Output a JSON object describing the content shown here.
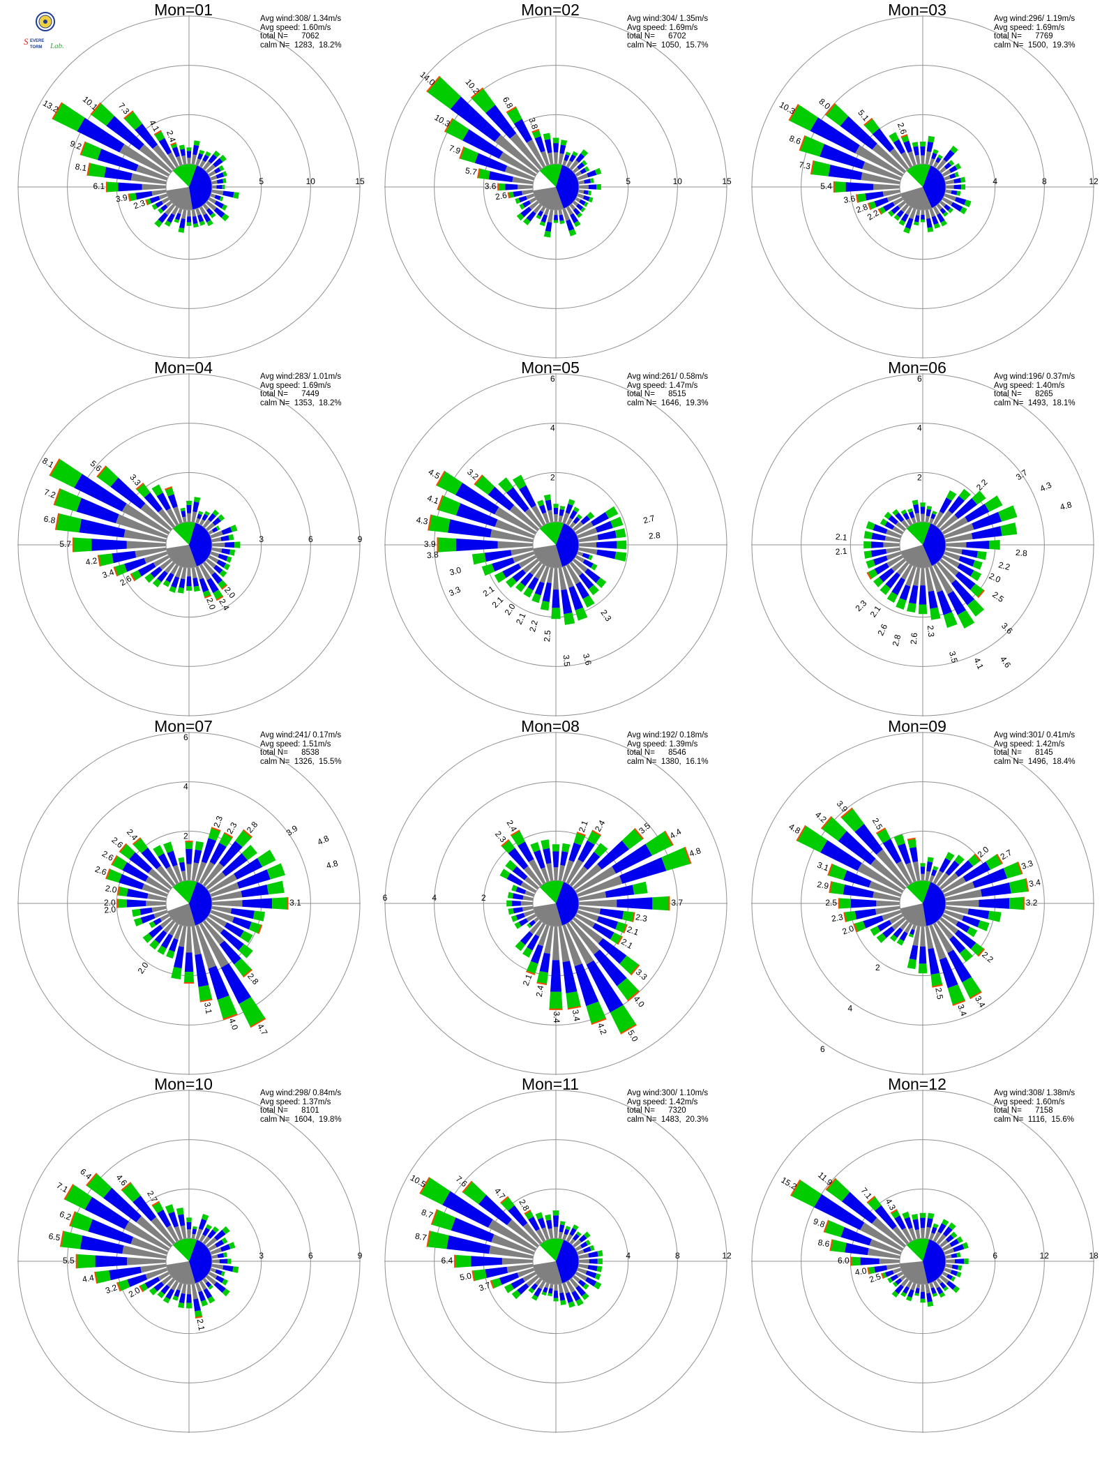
{
  "logo": {
    "text_line1": "Severe",
    "text_line2": "Storm",
    "text_line3": "Lab.",
    "colors": [
      "#1d3b8f",
      "#e02020",
      "#3aa53a"
    ]
  },
  "stat_labels": {
    "avg_wind": "Avg wind:",
    "avg_speed": "Avg speed:",
    "total": "total N=",
    "calm": "calm N="
  },
  "colors": {
    "low": "#808080",
    "mid": "#0000ee",
    "high": "#00cc00",
    "top": "#ff4500",
    "calm_fill": "#ffffff"
  },
  "chart_data": [
    {
      "type": "wind-rose",
      "title": "Mon=01",
      "avg_wind": "308/ 1.34m/s",
      "avg_speed": "1.60m/s",
      "total_n": "7062",
      "calm_n": "1283,",
      "calm_pct": "18.2%",
      "rings": [
        5,
        10,
        15
      ],
      "ring_labels": [
        "5",
        "10",
        "15"
      ],
      "calm_pie": [
        25,
        42,
        18,
        15
      ],
      "labels": [
        {
          "dir": 300,
          "v": "13.2"
        },
        {
          "dir": 310,
          "v": "10.1"
        },
        {
          "dir": 320,
          "v": "7.3"
        },
        {
          "dir": 330,
          "v": "4.1"
        },
        {
          "dir": 340,
          "v": "2.4"
        },
        {
          "dir": 290,
          "v": "9.2"
        },
        {
          "dir": 280,
          "v": "8.1"
        },
        {
          "dir": 270,
          "v": "6.1"
        },
        {
          "dir": 260,
          "v": "3.9"
        },
        {
          "dir": 250,
          "v": "2.3"
        }
      ]
    },
    {
      "type": "wind-rose",
      "title": "Mon=02",
      "avg_wind": "304/ 1.35m/s",
      "avg_speed": "1.69m/s",
      "total_n": "6702",
      "calm_n": "1050,",
      "calm_pct": "15.7%",
      "rings": [
        5,
        10,
        15
      ],
      "ring_labels": [
        "5",
        "10",
        "15"
      ],
      "calm_pie": [
        28,
        40,
        17,
        15
      ],
      "labels": [
        {
          "dir": 310,
          "v": "14.0"
        },
        {
          "dir": 320,
          "v": "10.2"
        },
        {
          "dir": 330,
          "v": "6.8"
        },
        {
          "dir": 340,
          "v": "3.8"
        },
        {
          "dir": 300,
          "v": "10.3"
        },
        {
          "dir": 290,
          "v": "7.9"
        },
        {
          "dir": 280,
          "v": "5.7"
        },
        {
          "dir": 270,
          "v": "3.6"
        },
        {
          "dir": 260,
          "v": "2.6"
        }
      ]
    },
    {
      "type": "wind-rose",
      "title": "Mon=03",
      "avg_wind": "296/ 1.19m/s",
      "avg_speed": "1.69m/s",
      "total_n": "7769",
      "calm_n": "1500,",
      "calm_pct": "19.3%",
      "rings": [
        4,
        8,
        12
      ],
      "ring_labels": [
        "4",
        "8",
        "12"
      ],
      "calm_pie": [
        27,
        38,
        18,
        17
      ],
      "labels": [
        {
          "dir": 300,
          "v": "10.3"
        },
        {
          "dir": 310,
          "v": "8.0"
        },
        {
          "dir": 320,
          "v": "5.1"
        },
        {
          "dir": 340,
          "v": "2.6"
        },
        {
          "dir": 290,
          "v": "8.6"
        },
        {
          "dir": 280,
          "v": "7.3"
        },
        {
          "dir": 270,
          "v": "5.4"
        },
        {
          "dir": 260,
          "v": "3.6"
        },
        {
          "dir": 250,
          "v": "2.8"
        },
        {
          "dir": 240,
          "v": "2.2"
        }
      ]
    },
    {
      "type": "wind-rose",
      "title": "Mon=04",
      "avg_wind": "283/ 1.01m/s",
      "avg_speed": "1.69m/s",
      "total_n": "7449",
      "calm_n": "1353,",
      "calm_pct": "18.2%",
      "rings": [
        3,
        6,
        9
      ],
      "ring_labels": [
        "3",
        "6",
        "9"
      ],
      "calm_pie": [
        28,
        40,
        17,
        15
      ],
      "labels": [
        {
          "dir": 300,
          "v": "8.1"
        },
        {
          "dir": 310,
          "v": "5.6"
        },
        {
          "dir": 320,
          "v": "3.3"
        },
        {
          "dir": 290,
          "v": "7.2"
        },
        {
          "dir": 280,
          "v": "6.8"
        },
        {
          "dir": 270,
          "v": "5.7"
        },
        {
          "dir": 260,
          "v": "4.2"
        },
        {
          "dir": 250,
          "v": "3.4"
        },
        {
          "dir": 240,
          "v": "2.6"
        },
        {
          "dir": 160,
          "v": "2.0"
        },
        {
          "dir": 150,
          "v": "2.4"
        },
        {
          "dir": 140,
          "v": "2.0"
        }
      ]
    },
    {
      "type": "wind-rose",
      "title": "Mon=05",
      "avg_wind": "261/ 0.58m/s",
      "avg_speed": "1.47m/s",
      "total_n": "8515",
      "calm_n": "1646,",
      "calm_pct": "19.3%",
      "rings": [
        2,
        4,
        6
      ],
      "ring_labels": [
        "2",
        "4",
        "6"
      ],
      "ring_label_dir": "up",
      "calm_pie": [
        27,
        40,
        18,
        15
      ],
      "labels": [
        {
          "dir": 300,
          "v": "4.5"
        },
        {
          "dir": 310,
          "v": "3.2"
        },
        {
          "dir": 290,
          "v": "4.1"
        },
        {
          "dir": 280,
          "v": "4.3"
        },
        {
          "dir": 270,
          "v": "3.9"
        },
        {
          "dir": 265,
          "v": "3.8"
        },
        {
          "dir": 255,
          "v": "3.0"
        },
        {
          "dir": 245,
          "v": "3.3"
        },
        {
          "dir": 235,
          "v": "2.1"
        },
        {
          "dir": 225,
          "v": "2.1"
        },
        {
          "dir": 215,
          "v": "2.0"
        },
        {
          "dir": 205,
          "v": "2.1"
        },
        {
          "dir": 195,
          "v": "2.2"
        },
        {
          "dir": 185,
          "v": "2.5"
        },
        {
          "dir": 175,
          "v": "3.5"
        },
        {
          "dir": 165,
          "v": "3.6"
        },
        {
          "dir": 145,
          "v": "2.3"
        },
        {
          "dir": 75,
          "v": "2.7"
        },
        {
          "dir": 85,
          "v": "2.8"
        }
      ]
    },
    {
      "type": "wind-rose",
      "title": "Mon=06",
      "avg_wind": "196/ 0.37m/s",
      "avg_speed": "1.40m/s",
      "total_n": "8265",
      "calm_n": "1493,",
      "calm_pct": "18.1%",
      "rings": [
        2,
        4,
        6
      ],
      "ring_labels": [
        "2",
        "4",
        "6"
      ],
      "ring_label_dir": "up",
      "calm_pie": [
        27,
        38,
        18,
        17
      ],
      "labels": [
        {
          "dir": 45,
          "v": "2.2"
        },
        {
          "dir": 55,
          "v": "3.7"
        },
        {
          "dir": 65,
          "v": "4.3"
        },
        {
          "dir": 75,
          "v": "4.8"
        },
        {
          "dir": 95,
          "v": "2.8"
        },
        {
          "dir": 105,
          "v": "2.2"
        },
        {
          "dir": 115,
          "v": "2.0"
        },
        {
          "dir": 125,
          "v": "2.5"
        },
        {
          "dir": 135,
          "v": "3.6"
        },
        {
          "dir": 145,
          "v": "4.6"
        },
        {
          "dir": 155,
          "v": "4.1"
        },
        {
          "dir": 165,
          "v": "3.5"
        },
        {
          "dir": 175,
          "v": "2.3"
        },
        {
          "dir": 185,
          "v": "2.6"
        },
        {
          "dir": 195,
          "v": "2.8"
        },
        {
          "dir": 205,
          "v": "2.6"
        },
        {
          "dir": 215,
          "v": "2.1"
        },
        {
          "dir": 225,
          "v": "2.3"
        },
        {
          "dir": 265,
          "v": "2.1"
        },
        {
          "dir": 275,
          "v": "2.1"
        }
      ]
    },
    {
      "type": "wind-rose",
      "title": "Mon=07",
      "avg_wind": "241/ 0.17m/s",
      "avg_speed": "1.51m/s",
      "total_n": "8538",
      "calm_n": "1326,",
      "calm_pct": "15.5%",
      "rings": [
        2,
        4,
        6
      ],
      "ring_labels": [
        "2",
        "4",
        "6"
      ],
      "ring_label_dir": "up",
      "calm_pie": [
        24,
        40,
        18,
        18
      ],
      "labels": [
        {
          "dir": 300,
          "v": "2.6"
        },
        {
          "dir": 310,
          "v": "2.6"
        },
        {
          "dir": 320,
          "v": "2.4"
        },
        {
          "dir": 290,
          "v": "2.6"
        },
        {
          "dir": 280,
          "v": "2.0"
        },
        {
          "dir": 265,
          "v": "2.0"
        },
        {
          "dir": 270,
          "v": "2.0"
        },
        {
          "dir": 20,
          "v": "2.3"
        },
        {
          "dir": 30,
          "v": "2.3"
        },
        {
          "dir": 40,
          "v": "2.8"
        },
        {
          "dir": 55,
          "v": "3.9"
        },
        {
          "dir": 65,
          "v": "4.8"
        },
        {
          "dir": 75,
          "v": "4.8"
        },
        {
          "dir": 90,
          "v": "3.1"
        },
        {
          "dir": 140,
          "v": "2.8"
        },
        {
          "dir": 150,
          "v": "4.7"
        },
        {
          "dir": 160,
          "v": "4.0"
        },
        {
          "dir": 170,
          "v": "3.1"
        },
        {
          "dir": 215,
          "v": "2.0"
        }
      ]
    },
    {
      "type": "wind-rose",
      "title": "Mon=08",
      "avg_wind": "192/ 0.18m/s",
      "avg_speed": "1.39m/s",
      "total_n": "8546",
      "calm_n": "1380,",
      "calm_pct": "16.1%",
      "rings": [
        2,
        4,
        6
      ],
      "ring_labels": [
        "2",
        "4",
        "6"
      ],
      "ring_label_dir": "left",
      "calm_pie": [
        27,
        40,
        18,
        15
      ],
      "labels": [
        {
          "dir": 320,
          "v": "2.3"
        },
        {
          "dir": 330,
          "v": "2.4"
        },
        {
          "dir": 20,
          "v": "2.1"
        },
        {
          "dir": 30,
          "v": "2.4"
        },
        {
          "dir": 50,
          "v": "3.5"
        },
        {
          "dir": 60,
          "v": "4.4"
        },
        {
          "dir": 70,
          "v": "4.8"
        },
        {
          "dir": 90,
          "v": "3.7"
        },
        {
          "dir": 100,
          "v": "2.3"
        },
        {
          "dir": 110,
          "v": "2.1"
        },
        {
          "dir": 120,
          "v": "2.1"
        },
        {
          "dir": 130,
          "v": "3.3"
        },
        {
          "dir": 140,
          "v": "4.0"
        },
        {
          "dir": 150,
          "v": "5.0"
        },
        {
          "dir": 160,
          "v": "4.2"
        },
        {
          "dir": 170,
          "v": "3.4"
        },
        {
          "dir": 180,
          "v": "3.4"
        },
        {
          "dir": 190,
          "v": "2.4"
        },
        {
          "dir": 200,
          "v": "2.1"
        }
      ]
    },
    {
      "type": "wind-rose",
      "title": "Mon=09",
      "avg_wind": "301/ 0.41m/s",
      "avg_speed": "1.42m/s",
      "total_n": "8145",
      "calm_n": "1496,",
      "calm_pct": "18.4%",
      "rings": [
        2,
        4,
        6
      ],
      "ring_labels": [
        "2",
        "4",
        "6"
      ],
      "ring_label_dir": "down-left",
      "calm_pie": [
        24,
        42,
        18,
        16
      ],
      "labels": [
        {
          "dir": 300,
          "v": "4.8"
        },
        {
          "dir": 310,
          "v": "4.2"
        },
        {
          "dir": 320,
          "v": "3.9"
        },
        {
          "dir": 330,
          "v": "2.5"
        },
        {
          "dir": 290,
          "v": "3.1"
        },
        {
          "dir": 280,
          "v": "2.9"
        },
        {
          "dir": 270,
          "v": "2.5"
        },
        {
          "dir": 260,
          "v": "2.3"
        },
        {
          "dir": 250,
          "v": "2.0"
        },
        {
          "dir": 50,
          "v": "2.0"
        },
        {
          "dir": 60,
          "v": "2.7"
        },
        {
          "dir": 70,
          "v": "3.3"
        },
        {
          "dir": 80,
          "v": "3.4"
        },
        {
          "dir": 90,
          "v": "3.2"
        },
        {
          "dir": 130,
          "v": "2.2"
        },
        {
          "dir": 150,
          "v": "3.4"
        },
        {
          "dir": 160,
          "v": "3.4"
        },
        {
          "dir": 170,
          "v": "2.5"
        }
      ]
    },
    {
      "type": "wind-rose",
      "title": "Mon=10",
      "avg_wind": "298/ 0.84m/s",
      "avg_speed": "1.37m/s",
      "total_n": "8101",
      "calm_n": "1604,",
      "calm_pct": "19.8%",
      "rings": [
        3,
        6,
        9
      ],
      "ring_labels": [
        "3",
        "6",
        "9"
      ],
      "calm_pie": [
        27,
        40,
        18,
        15
      ],
      "labels": [
        {
          "dir": 300,
          "v": "7.1"
        },
        {
          "dir": 310,
          "v": "6.4"
        },
        {
          "dir": 320,
          "v": "4.6"
        },
        {
          "dir": 330,
          "v": "2.7"
        },
        {
          "dir": 290,
          "v": "6.2"
        },
        {
          "dir": 280,
          "v": "6.5"
        },
        {
          "dir": 270,
          "v": "5.5"
        },
        {
          "dir": 260,
          "v": "4.4"
        },
        {
          "dir": 250,
          "v": "3.2"
        },
        {
          "dir": 240,
          "v": "2.0"
        },
        {
          "dir": 170,
          "v": "2.1"
        }
      ]
    },
    {
      "type": "wind-rose",
      "title": "Mon=11",
      "avg_wind": "300/ 1.10m/s",
      "avg_speed": "1.42m/s",
      "total_n": "7320",
      "calm_n": "1483,",
      "calm_pct": "20.3%",
      "rings": [
        4,
        8,
        12
      ],
      "ring_labels": [
        "4",
        "8",
        "12"
      ],
      "calm_pie": [
        27,
        40,
        18,
        15
      ],
      "labels": [
        {
          "dir": 300,
          "v": "10.5"
        },
        {
          "dir": 310,
          "v": "7.6"
        },
        {
          "dir": 320,
          "v": "4.7"
        },
        {
          "dir": 330,
          "v": "2.8"
        },
        {
          "dir": 290,
          "v": "8.7"
        },
        {
          "dir": 280,
          "v": "8.7"
        },
        {
          "dir": 270,
          "v": "6.4"
        },
        {
          "dir": 260,
          "v": "5.0"
        },
        {
          "dir": 250,
          "v": "3.7"
        }
      ]
    },
    {
      "type": "wind-rose",
      "title": "Mon=12",
      "avg_wind": "308/ 1.38m/s",
      "avg_speed": "1.60m/s",
      "total_n": "7158",
      "calm_n": "1116,",
      "calm_pct": "15.6%",
      "rings": [
        6,
        12,
        18
      ],
      "ring_labels": [
        "6",
        "12",
        "18"
      ],
      "calm_pie": [
        27,
        42,
        17,
        14
      ],
      "labels": [
        {
          "dir": 300,
          "v": "15.2"
        },
        {
          "dir": 310,
          "v": "11.9"
        },
        {
          "dir": 320,
          "v": "7.1"
        },
        {
          "dir": 330,
          "v": "4.3"
        },
        {
          "dir": 290,
          "v": "9.8"
        },
        {
          "dir": 280,
          "v": "8.6"
        },
        {
          "dir": 270,
          "v": "6.0"
        },
        {
          "dir": 260,
          "v": "4.0"
        },
        {
          "dir": 250,
          "v": "2.5"
        }
      ]
    }
  ]
}
